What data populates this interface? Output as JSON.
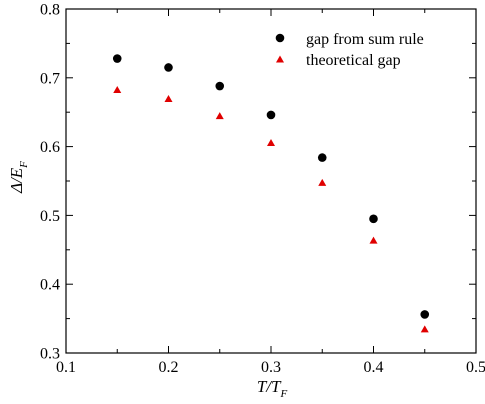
{
  "chart_data": {
    "type": "scatter",
    "title": "",
    "xlabel": "T/T",
    "xlabel_sub": "F",
    "ylabel_main": "Δ/E",
    "ylabel_sub": "F",
    "xlim": [
      0.1,
      0.5
    ],
    "ylim": [
      0.3,
      0.8
    ],
    "xticks": [
      "0.1",
      "0.2",
      "0.3",
      "0.4",
      "0.5"
    ],
    "yticks": [
      "0.3",
      "0.4",
      "0.5",
      "0.6",
      "0.7",
      "0.8"
    ],
    "grid": false,
    "legend_position": "top-right",
    "series": [
      {
        "name": "gap from sum rule",
        "marker": "circle",
        "color": "#000000",
        "x": [
          0.15,
          0.2,
          0.25,
          0.3,
          0.35,
          0.4,
          0.45
        ],
        "y": [
          0.728,
          0.715,
          0.688,
          0.646,
          0.584,
          0.495,
          0.356
        ]
      },
      {
        "name": "theoretical gap",
        "marker": "triangle",
        "color": "#e00000",
        "x": [
          0.15,
          0.2,
          0.25,
          0.3,
          0.35,
          0.4,
          0.45
        ],
        "y": [
          0.683,
          0.67,
          0.645,
          0.606,
          0.548,
          0.464,
          0.335
        ]
      }
    ]
  }
}
